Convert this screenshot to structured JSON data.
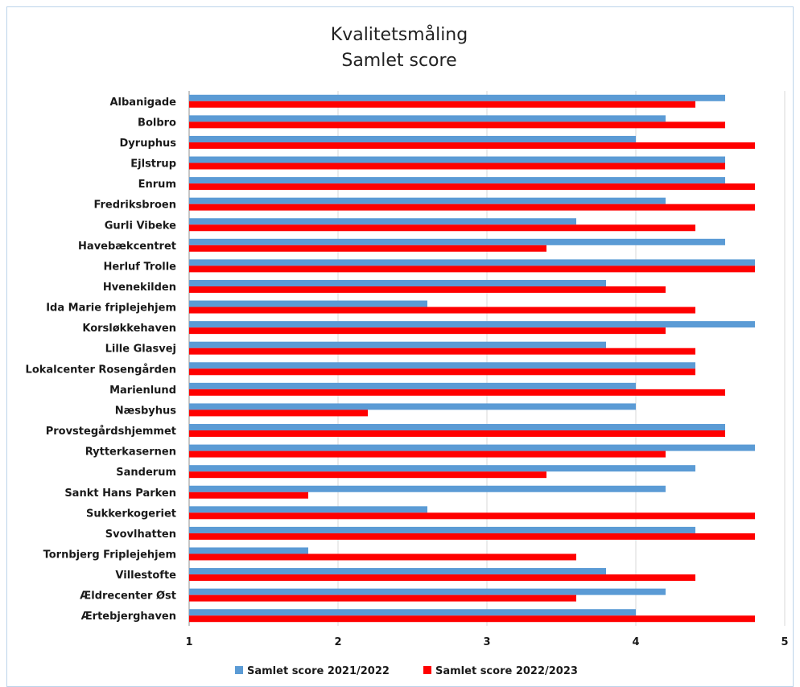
{
  "chart_data": {
    "type": "bar",
    "orientation": "horizontal",
    "title": [
      "Kvalitetsmåling",
      "Samlet score"
    ],
    "categories": [
      "Albanigade",
      "Bolbro",
      "Dyruphus",
      "Ejlstrup",
      "Enrum",
      "Fredriksbroen",
      "Gurli Vibeke",
      "Havebækcentret",
      "Herluf Trolle",
      "Hvenekilden",
      "Ida Marie friplejehjem",
      "Korsløkkehaven",
      "Lille Glasvej",
      "Lokalcenter Rosengården",
      "Marienlund",
      "Næsbyhus",
      "Provstegårdshjemmet",
      "Rytterkasernen",
      "Sanderum",
      "Sankt Hans Parken",
      "Sukkerkogeriet",
      "Svovlhatten",
      "Tornbjerg Friplejehjem",
      "Villestofte",
      "Ældrecenter Øst",
      "Ærtebjerghaven"
    ],
    "series": [
      {
        "name": "Samlet score 2021/2022",
        "color": "#5b9bd5",
        "values": [
          4.6,
          4.2,
          4.0,
          4.6,
          4.6,
          4.2,
          3.6,
          4.6,
          4.8,
          3.8,
          2.6,
          4.8,
          3.8,
          4.4,
          4.0,
          4.0,
          4.6,
          4.8,
          4.4,
          4.2,
          2.6,
          4.4,
          1.8,
          3.8,
          4.2,
          4.0
        ]
      },
      {
        "name": "Samlet score 2022/2023",
        "color": "#ff0000",
        "values": [
          4.4,
          4.6,
          4.8,
          4.6,
          4.8,
          4.8,
          4.4,
          3.4,
          4.8,
          4.2,
          4.4,
          4.2,
          4.4,
          4.4,
          4.6,
          2.2,
          4.6,
          4.2,
          3.4,
          1.8,
          4.8,
          4.8,
          3.6,
          4.4,
          3.6,
          4.8
        ]
      }
    ],
    "xlim": [
      1,
      5
    ],
    "xticks": [
      1,
      2,
      3,
      4,
      5
    ],
    "grid": "vertical",
    "legend": "bottom"
  }
}
